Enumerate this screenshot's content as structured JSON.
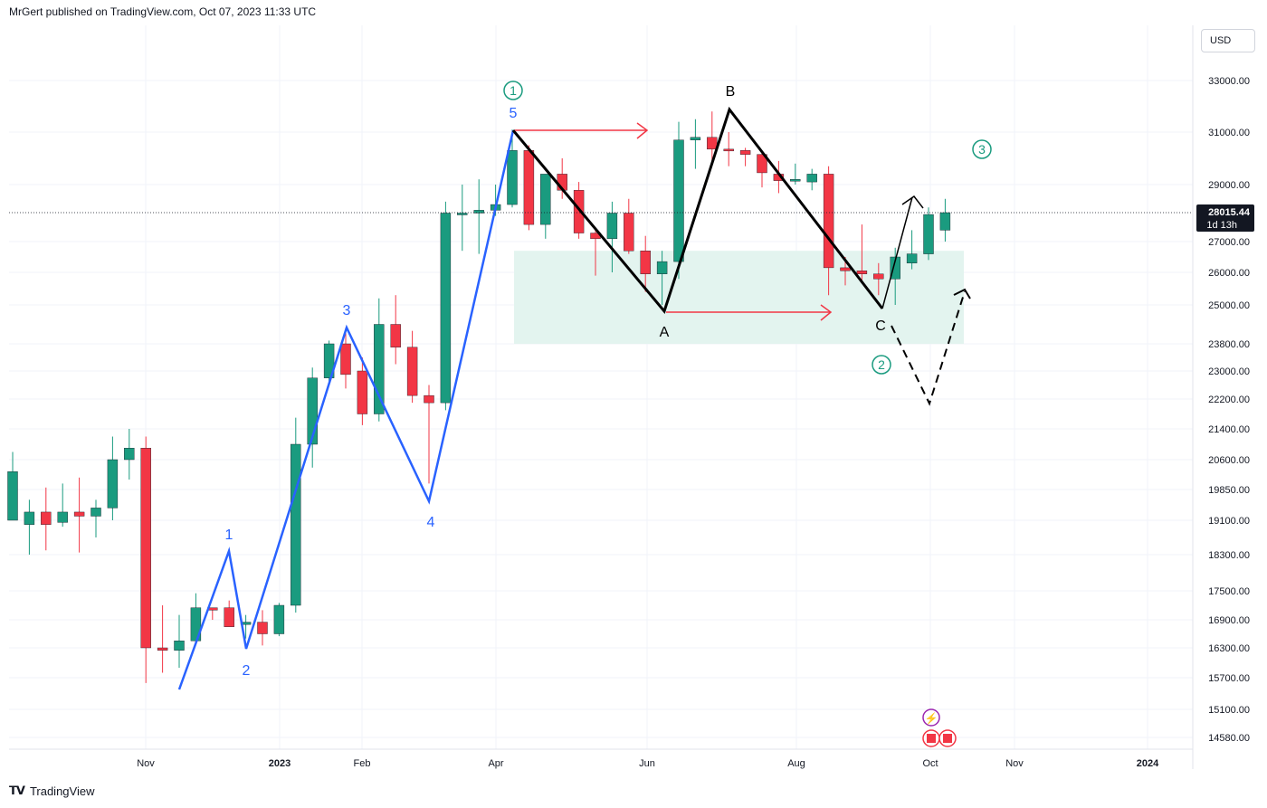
{
  "header": {
    "publisher": "MrGert published on TradingView.com, Oct 07, 2023 11:33 UTC"
  },
  "footer": {
    "brand": "TradingView"
  },
  "currency": "USD",
  "price_tag": {
    "price": "28015.44",
    "countdown": "1d 13h"
  },
  "colors": {
    "up": "#1a9b7f",
    "down": "#f23645",
    "wave": "#2962ff",
    "zone": "#e3f4ef",
    "arrow": "#f23645",
    "circle": "#1a9b7f"
  },
  "chart_data": {
    "type": "candlestick",
    "interval": "weekly",
    "y_axis_labels": [
      "33000.00",
      "31000.00",
      "29000.00",
      "28015.44",
      "27000.00",
      "26000.00",
      "25000.00",
      "23800.00",
      "23000.00",
      "22200.00",
      "21400.00",
      "20600.00",
      "19850.00",
      "19100.00",
      "18300.00",
      "17500.00",
      "16900.00",
      "16300.00",
      "15700.00",
      "15100.00",
      "14580.00"
    ],
    "y_ticks": [
      33000,
      31000,
      29000,
      27000,
      26000,
      25000,
      23800,
      23000,
      22200,
      21400,
      20600,
      19850,
      19100,
      18300,
      17500,
      16900,
      16300,
      15700,
      15100,
      14580
    ],
    "x_axis_labels": [
      "Nov",
      "2023",
      "Feb",
      "Apr",
      "Jun",
      "Aug",
      "Oct",
      "Nov",
      "2024"
    ],
    "last_price": 28015.44,
    "candles": [
      {
        "o": 19100,
        "h": 20800,
        "l": 19100,
        "c": 20300
      },
      {
        "o": 19000,
        "h": 19600,
        "l": 18300,
        "c": 19300
      },
      {
        "o": 19300,
        "h": 19900,
        "l": 18400,
        "c": 19000
      },
      {
        "o": 19050,
        "h": 20000,
        "l": 18950,
        "c": 19300
      },
      {
        "o": 19300,
        "h": 20150,
        "l": 18350,
        "c": 19200
      },
      {
        "o": 19200,
        "h": 19600,
        "l": 18700,
        "c": 19400
      },
      {
        "o": 19400,
        "h": 21200,
        "l": 19100,
        "c": 20600
      },
      {
        "o": 20600,
        "h": 21400,
        "l": 20100,
        "c": 20900
      },
      {
        "o": 20900,
        "h": 21200,
        "l": 15600,
        "c": 16300
      },
      {
        "o": 16300,
        "h": 17200,
        "l": 15800,
        "c": 16250
      },
      {
        "o": 16250,
        "h": 17000,
        "l": 15900,
        "c": 16450
      },
      {
        "o": 16450,
        "h": 17450,
        "l": 16400,
        "c": 17150
      },
      {
        "o": 17150,
        "h": 17150,
        "l": 16900,
        "c": 17100
      },
      {
        "o": 17150,
        "h": 17300,
        "l": 16800,
        "c": 16750
      },
      {
        "o": 16800,
        "h": 17000,
        "l": 16500,
        "c": 16850
      },
      {
        "o": 16850,
        "h": 17100,
        "l": 16350,
        "c": 16600
      },
      {
        "o": 16600,
        "h": 17250,
        "l": 16550,
        "c": 17200
      },
      {
        "o": 17200,
        "h": 21700,
        "l": 17050,
        "c": 21000
      },
      {
        "o": 21000,
        "h": 23100,
        "l": 20400,
        "c": 22800
      },
      {
        "o": 22800,
        "h": 23900,
        "l": 22600,
        "c": 23800
      },
      {
        "o": 23800,
        "h": 24300,
        "l": 22500,
        "c": 22900
      },
      {
        "o": 23000,
        "h": 23400,
        "l": 21500,
        "c": 21800
      },
      {
        "o": 21800,
        "h": 25200,
        "l": 21600,
        "c": 24400
      },
      {
        "o": 24400,
        "h": 25300,
        "l": 23200,
        "c": 23700
      },
      {
        "o": 23700,
        "h": 24200,
        "l": 22100,
        "c": 22300
      },
      {
        "o": 22300,
        "h": 22600,
        "l": 20000,
        "c": 22100
      },
      {
        "o": 22100,
        "h": 28400,
        "l": 21900,
        "c": 28000
      },
      {
        "o": 28000,
        "h": 29000,
        "l": 26700,
        "c": 28000
      },
      {
        "o": 28000,
        "h": 29200,
        "l": 26600,
        "c": 28100
      },
      {
        "o": 28100,
        "h": 29000,
        "l": 27900,
        "c": 28300
      },
      {
        "o": 28300,
        "h": 31100,
        "l": 28200,
        "c": 30300
      },
      {
        "o": 30300,
        "h": 30500,
        "l": 27400,
        "c": 27600
      },
      {
        "o": 27600,
        "h": 29400,
        "l": 27100,
        "c": 29400
      },
      {
        "o": 29400,
        "h": 30000,
        "l": 28500,
        "c": 28800
      },
      {
        "o": 28800,
        "h": 29100,
        "l": 27100,
        "c": 27300
      },
      {
        "o": 27300,
        "h": 27500,
        "l": 25900,
        "c": 27100
      },
      {
        "o": 27100,
        "h": 28400,
        "l": 26000,
        "c": 28000
      },
      {
        "o": 28000,
        "h": 28500,
        "l": 26600,
        "c": 26700
      },
      {
        "o": 26700,
        "h": 27200,
        "l": 25400,
        "c": 25950
      },
      {
        "o": 25950,
        "h": 26700,
        "l": 25000,
        "c": 26350
      },
      {
        "o": 26350,
        "h": 31400,
        "l": 25800,
        "c": 30700
      },
      {
        "o": 30700,
        "h": 31500,
        "l": 29600,
        "c": 30800
      },
      {
        "o": 30800,
        "h": 31800,
        "l": 29800,
        "c": 30350
      },
      {
        "o": 30350,
        "h": 31000,
        "l": 29700,
        "c": 30300
      },
      {
        "o": 30300,
        "h": 30400,
        "l": 29700,
        "c": 30150
      },
      {
        "o": 30150,
        "h": 30300,
        "l": 28900,
        "c": 29450
      },
      {
        "o": 29400,
        "h": 29900,
        "l": 28700,
        "c": 29150
      },
      {
        "o": 29150,
        "h": 29800,
        "l": 29000,
        "c": 29200
      },
      {
        "o": 29100,
        "h": 29600,
        "l": 28800,
        "c": 29400
      },
      {
        "o": 29400,
        "h": 29700,
        "l": 25300,
        "c": 26150
      },
      {
        "o": 26150,
        "h": 26500,
        "l": 25600,
        "c": 26050
      },
      {
        "o": 26050,
        "h": 27600,
        "l": 25700,
        "c": 25950
      },
      {
        "o": 25950,
        "h": 26300,
        "l": 25300,
        "c": 25800
      },
      {
        "o": 25800,
        "h": 26800,
        "l": 25000,
        "c": 26500
      },
      {
        "o": 26300,
        "h": 27400,
        "l": 26100,
        "c": 26600
      },
      {
        "o": 26600,
        "h": 28200,
        "l": 26400,
        "c": 27950
      },
      {
        "o": 27400,
        "h": 28500,
        "l": 27000,
        "c": 28015.44
      }
    ],
    "annotations": {
      "impulse_labels": [
        "1",
        "2",
        "3",
        "4",
        "5"
      ],
      "correction_labels": [
        "A",
        "B",
        "C"
      ],
      "circled_labels": [
        "1",
        "2",
        "3"
      ]
    }
  }
}
